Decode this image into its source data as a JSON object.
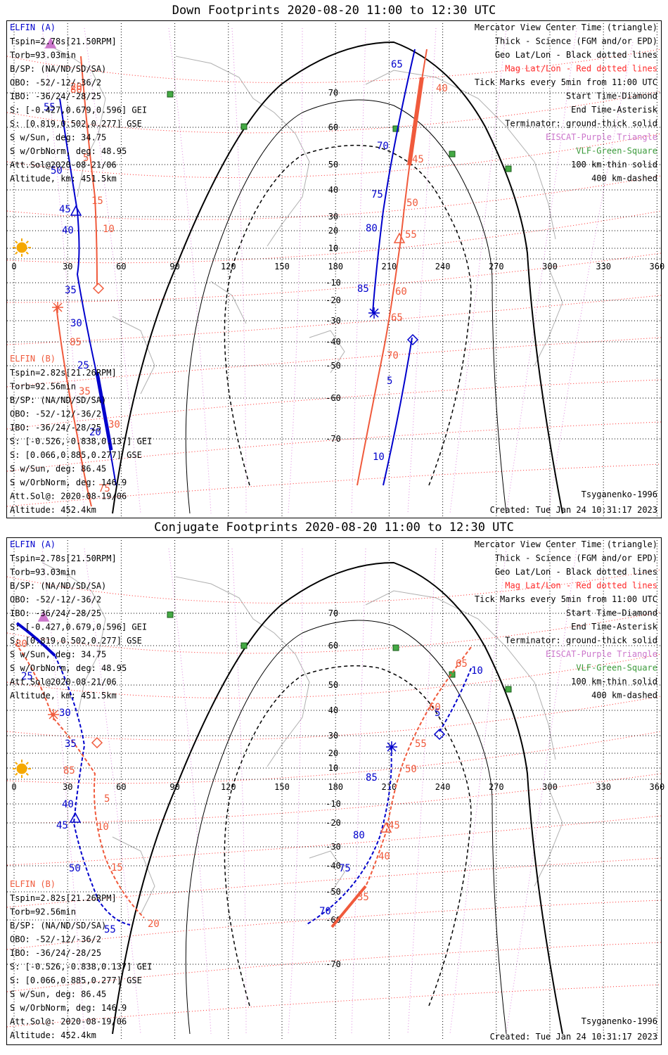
{
  "colors": {
    "elfin_a": "#0000cc",
    "elfin_b": "#f05a3c",
    "mag_grid": "#ff2a2a",
    "geo_grid": "#000000",
    "purple": "#cc77cc",
    "green": "#3a9a3a",
    "green_fill": "#44aa44",
    "sun": "#f5a800",
    "coast": "#b0b0b0",
    "merid": "#dd88dd"
  },
  "panels": [
    {
      "title": "Down Footprints 2020-08-20 11:00 to 12:30 UTC",
      "elfin_a": {
        "header": "ELFIN (A)",
        "lines": [
          "Tspin=2.78s[21.50RPM]",
          "Torb=93.03min",
          "B/SP: (NA/ND/SD/SA)",
          "OBO: -52/-12/-36/2",
          "IBO: -36/24/-28/25",
          "S: [-0.427,0.679,0.596] GEI",
          "S: [0.819,0.502,0.277] GSE",
          "S w/Sun, deg: 34.75",
          "S w/OrbNorm, deg: 48.95",
          "Att.Sol@2020-08-21/06",
          "Altitude, km: 451.5km"
        ]
      },
      "elfin_b": {
        "header": "ELFIN (B)",
        "lines": [
          "Tspin=2.82s[21.26RPM]",
          "Torb=92.56min",
          "B/SP: (NA/ND/SD/SA)",
          "OBO: -52/-12/-36/2",
          "IBO: -36/24/-28/25",
          "S: [-0.526,-0.838,0.137] GEI",
          "S: [0.066,0.885,0.277] GSE",
          "S w/Sun, deg: 86.45",
          "S w/OrbNorm, deg: 146.9",
          "Att.Sol@: 2020-08-19/06",
          "Altitude: 452.4km"
        ]
      },
      "legend": [
        {
          "text": "Mercator View Center Time (triangle)",
          "color": "#000000"
        },
        {
          "text": "Thick - Science (FGM and/or EPD)",
          "color": "#000000"
        },
        {
          "text": "Geo Lat/Lon - Black dotted lines",
          "color": "#000000"
        },
        {
          "text": "Mag Lat/Lon - Red dotted lines",
          "color": "#ff2a2a"
        },
        {
          "text": "Tick Marks every 5min from 11:00 UTC",
          "color": "#000000"
        },
        {
          "text": "Start Time-Diamond",
          "color": "#000000"
        },
        {
          "text": "End Time-Asterisk",
          "color": "#000000"
        },
        {
          "text": "Terminator: ground-thick solid",
          "color": "#000000"
        },
        {
          "text": "EISCAT-Purple Triangle",
          "color": "#cc77cc"
        },
        {
          "text": "VLF-Green-Square",
          "color": "#3a9a3a"
        },
        {
          "text": "100 km-thin solid",
          "color": "#000000"
        },
        {
          "text": "400 km-dashed",
          "color": "#000000"
        }
      ],
      "model": "Tsyganenko-1996",
      "created": "Created: Tue Jan 24 10:31:17 2023",
      "lon_ticks": [
        "0",
        "30",
        "60",
        "90",
        "120",
        "150",
        "180",
        "210",
        "240",
        "270",
        "300",
        "330",
        "360"
      ],
      "lat_ticks": [
        "70",
        "60",
        "50",
        "40",
        "30",
        "20",
        "10",
        "-10",
        "-20",
        "-30",
        "-40",
        "-50",
        "-60",
        "-70"
      ],
      "a_labels": [
        "55",
        "50",
        "45",
        "40",
        "35",
        "30",
        "25",
        "20",
        "65",
        "70",
        "75",
        "80",
        "85",
        "5",
        "10"
      ],
      "b_labels": [
        "20",
        "15",
        "10",
        "5",
        "80",
        "85",
        "75",
        "30",
        "35",
        "40",
        "45",
        "50",
        "55",
        "60",
        "65",
        "70"
      ]
    },
    {
      "title": "Conjugate Footprints 2020-08-20 11:00 to 12:30 UTC",
      "elfin_a": {
        "header": "ELFIN (A)",
        "lines": [
          "Tspin=2.78s[21.50RPM]",
          "Torb=93.03min",
          "B/SP: (NA/ND/SD/SA)",
          "OBO: -52/-12/-36/2",
          "IBO: -36/24/-28/25",
          "S: [-0.427,0.679,0.596] GEI",
          "S: [0.819,0.502,0.277] GSE",
          "S w/Sun, deg: 34.75",
          "S w/OrbNorm, deg: 48.95",
          "Att.Sol@2020-08-21/06",
          "Altitude, km: 451.5km"
        ]
      },
      "elfin_b": {
        "header": "ELFIN (B)",
        "lines": [
          "Tspin=2.82s[21.26RPM]",
          "Torb=92.56min",
          "B/SP: (NA/ND/SD/SA)",
          "OBO: -52/-12/-36/2",
          "IBO: -36/24/-28/25",
          "S: [-0.526,-0.838,0.137] GEI",
          "S: [0.066,0.885,0.277] GSE",
          "S w/Sun, deg: 86.45",
          "S w/OrbNorm, deg: 146.9",
          "Att.Sol@: 2020-08-19/06",
          "Altitude: 452.4km"
        ]
      },
      "legend": [
        {
          "text": "Mercator View Center Time (triangle)",
          "color": "#000000"
        },
        {
          "text": "Thick - Science (FGM and/or EPD)",
          "color": "#000000"
        },
        {
          "text": "Geo Lat/Lon - Black dotted lines",
          "color": "#000000"
        },
        {
          "text": "Mag Lat/Lon - Red dotted lines",
          "color": "#ff2a2a"
        },
        {
          "text": "Tick Marks every 5min from 11:00 UTC",
          "color": "#000000"
        },
        {
          "text": "Start Time-Diamond",
          "color": "#000000"
        },
        {
          "text": "End Time-Asterisk",
          "color": "#000000"
        },
        {
          "text": "Terminator: ground-thick solid",
          "color": "#000000"
        },
        {
          "text": "EISCAT-Purple Triangle",
          "color": "#cc77cc"
        },
        {
          "text": "VLF-Green-Square",
          "color": "#3a9a3a"
        },
        {
          "text": "100 km-thin solid",
          "color": "#000000"
        },
        {
          "text": "400 km-dashed",
          "color": "#000000"
        }
      ],
      "model": "Tsyganenko-1996",
      "created": "Created: Tue Jan 24 10:31:17 2023",
      "lon_ticks": [
        "0",
        "30",
        "60",
        "90",
        "120",
        "150",
        "180",
        "210",
        "240",
        "270",
        "300",
        "330",
        "360"
      ],
      "lat_ticks": [
        "70",
        "60",
        "50",
        "40",
        "30",
        "20",
        "10",
        "-10",
        "-20",
        "-30",
        "-40",
        "-50",
        "-60",
        "-70"
      ],
      "a_labels": [
        "25",
        "30",
        "35",
        "40",
        "45",
        "50",
        "55",
        "85",
        "80",
        "75",
        "70",
        "5",
        "10"
      ],
      "b_labels": [
        "80",
        "85",
        "5",
        "10",
        "15",
        "20",
        "45",
        "40",
        "35",
        "50",
        "55",
        "60",
        "65"
      ]
    }
  ]
}
